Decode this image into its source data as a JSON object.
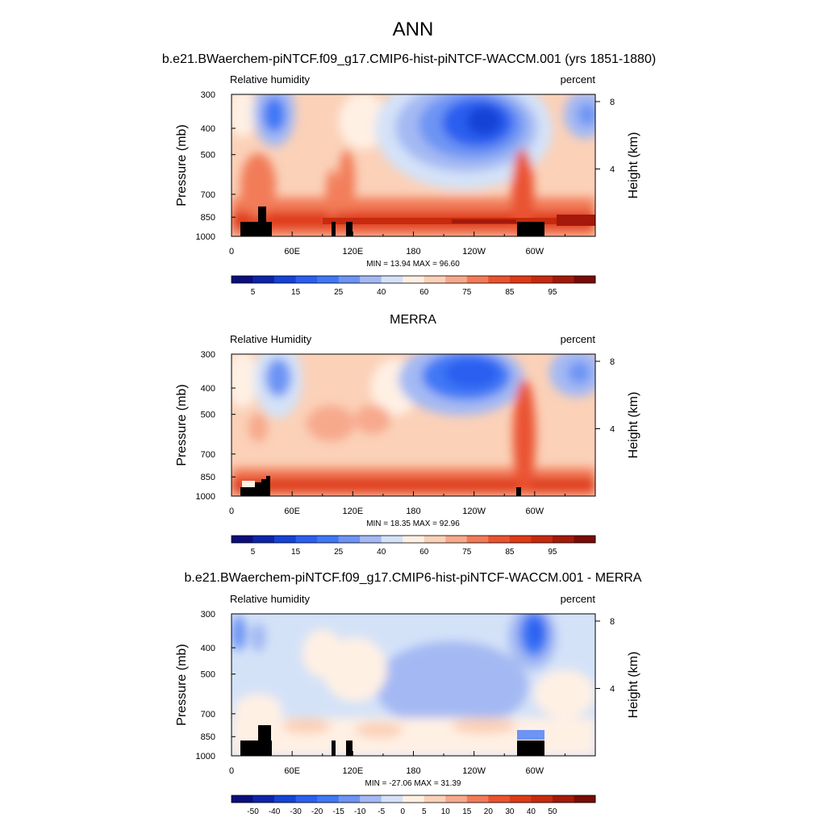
{
  "page_title": "ANN",
  "colors": {
    "rh_palette": [
      "#0a0f7c",
      "#0d24ab",
      "#1443d6",
      "#2b5ff0",
      "#3f78f5",
      "#6d94f4",
      "#a4b9f3",
      "#d4e2f8",
      "#fff0e4",
      "#fbd1b8",
      "#f7a98c",
      "#f27b58",
      "#ea5330",
      "#df3a16",
      "#c72a0e",
      "#a4190a",
      "#7a0b05"
    ],
    "diff_palette": [
      "#0a0f7c",
      "#0d24ab",
      "#1443d6",
      "#2b5ff0",
      "#3f78f5",
      "#6d94f4",
      "#a4b9f3",
      "#d4e2f8",
      "#fff0e4",
      "#fbd1b8",
      "#f7a98c",
      "#f27b58",
      "#ea5330",
      "#df3a16",
      "#c72a0e",
      "#a4190a",
      "#7a0b05"
    ],
    "topography": "#000000"
  },
  "chart_data": [
    {
      "type": "heatmap",
      "title": "b.e21.BWaerchem-piNTCF.f09_g17.CMIP6-hist-piNTCF-WACCM.001 (yrs 1851-1880)",
      "left_label": "Relative humidity",
      "right_label": "percent",
      "ylabel": "Pressure (mb)",
      "ylabel_right": "Height (km)",
      "x_ticks": [
        "0",
        "60E",
        "120E",
        "180",
        "120W",
        "60W"
      ],
      "x_tick_lon": [
        0,
        60,
        120,
        180,
        240,
        300
      ],
      "xlim": [
        0,
        360
      ],
      "y_ticks": [
        "300",
        "400",
        "500",
        "700",
        "850",
        "1000"
      ],
      "y_tick_values": [
        300,
        400,
        500,
        700,
        850,
        1000
      ],
      "ylim": [
        1000,
        300
      ],
      "y_scale": "log",
      "y2_ticks": [
        "8",
        "4"
      ],
      "y2_tick_km": [
        8,
        4
      ],
      "stats": "MIN =  13.94  MAX =  96.60",
      "min": 13.94,
      "max": 96.6,
      "colorbar_labels": [
        "5",
        "15",
        "25",
        "40",
        "60",
        "75",
        "85",
        "95"
      ],
      "colorbar_levels": 16
    },
    {
      "type": "heatmap",
      "title": "MERRA",
      "left_label": "Relative Humidity",
      "right_label": "percent",
      "ylabel": "Pressure (mb)",
      "ylabel_right": "Height (km)",
      "x_ticks": [
        "0",
        "60E",
        "120E",
        "180",
        "120W",
        "60W"
      ],
      "x_tick_lon": [
        0,
        60,
        120,
        180,
        240,
        300
      ],
      "xlim": [
        0,
        360
      ],
      "y_ticks": [
        "300",
        "400",
        "500",
        "700",
        "850",
        "1000"
      ],
      "y_tick_values": [
        300,
        400,
        500,
        700,
        850,
        1000
      ],
      "ylim": [
        1000,
        300
      ],
      "y_scale": "log",
      "y2_ticks": [
        "8",
        "4"
      ],
      "y2_tick_km": [
        8,
        4
      ],
      "stats": "MIN =  18.35  MAX =  92.96",
      "min": 18.35,
      "max": 92.96,
      "colorbar_labels": [
        "5",
        "15",
        "25",
        "40",
        "60",
        "75",
        "85",
        "95"
      ],
      "colorbar_levels": 16
    },
    {
      "type": "heatmap",
      "title": "b.e21.BWaerchem-piNTCF.f09_g17.CMIP6-hist-piNTCF-WACCM.001 - MERRA",
      "left_label": "Relative humidity",
      "right_label": "percent",
      "ylabel": "Pressure (mb)",
      "ylabel_right": "Height (km)",
      "x_ticks": [
        "0",
        "60E",
        "120E",
        "180",
        "120W",
        "60W"
      ],
      "x_tick_lon": [
        0,
        60,
        120,
        180,
        240,
        300
      ],
      "xlim": [
        0,
        360
      ],
      "y_ticks": [
        "300",
        "400",
        "500",
        "700",
        "850",
        "1000"
      ],
      "y_tick_values": [
        300,
        400,
        500,
        700,
        850,
        1000
      ],
      "ylim": [
        1000,
        300
      ],
      "y_scale": "log",
      "y2_ticks": [
        "8",
        "4"
      ],
      "y2_tick_km": [
        8,
        4
      ],
      "stats": "MIN = -27.06  MAX =  31.39",
      "min": -27.06,
      "max": 31.39,
      "colorbar_labels": [
        "-50",
        "-40",
        "-30",
        "-20",
        "-15",
        "-10",
        "-5",
        "0",
        "5",
        "10",
        "15",
        "20",
        "30",
        "40",
        "50"
      ],
      "colorbar_levels": 16
    }
  ]
}
